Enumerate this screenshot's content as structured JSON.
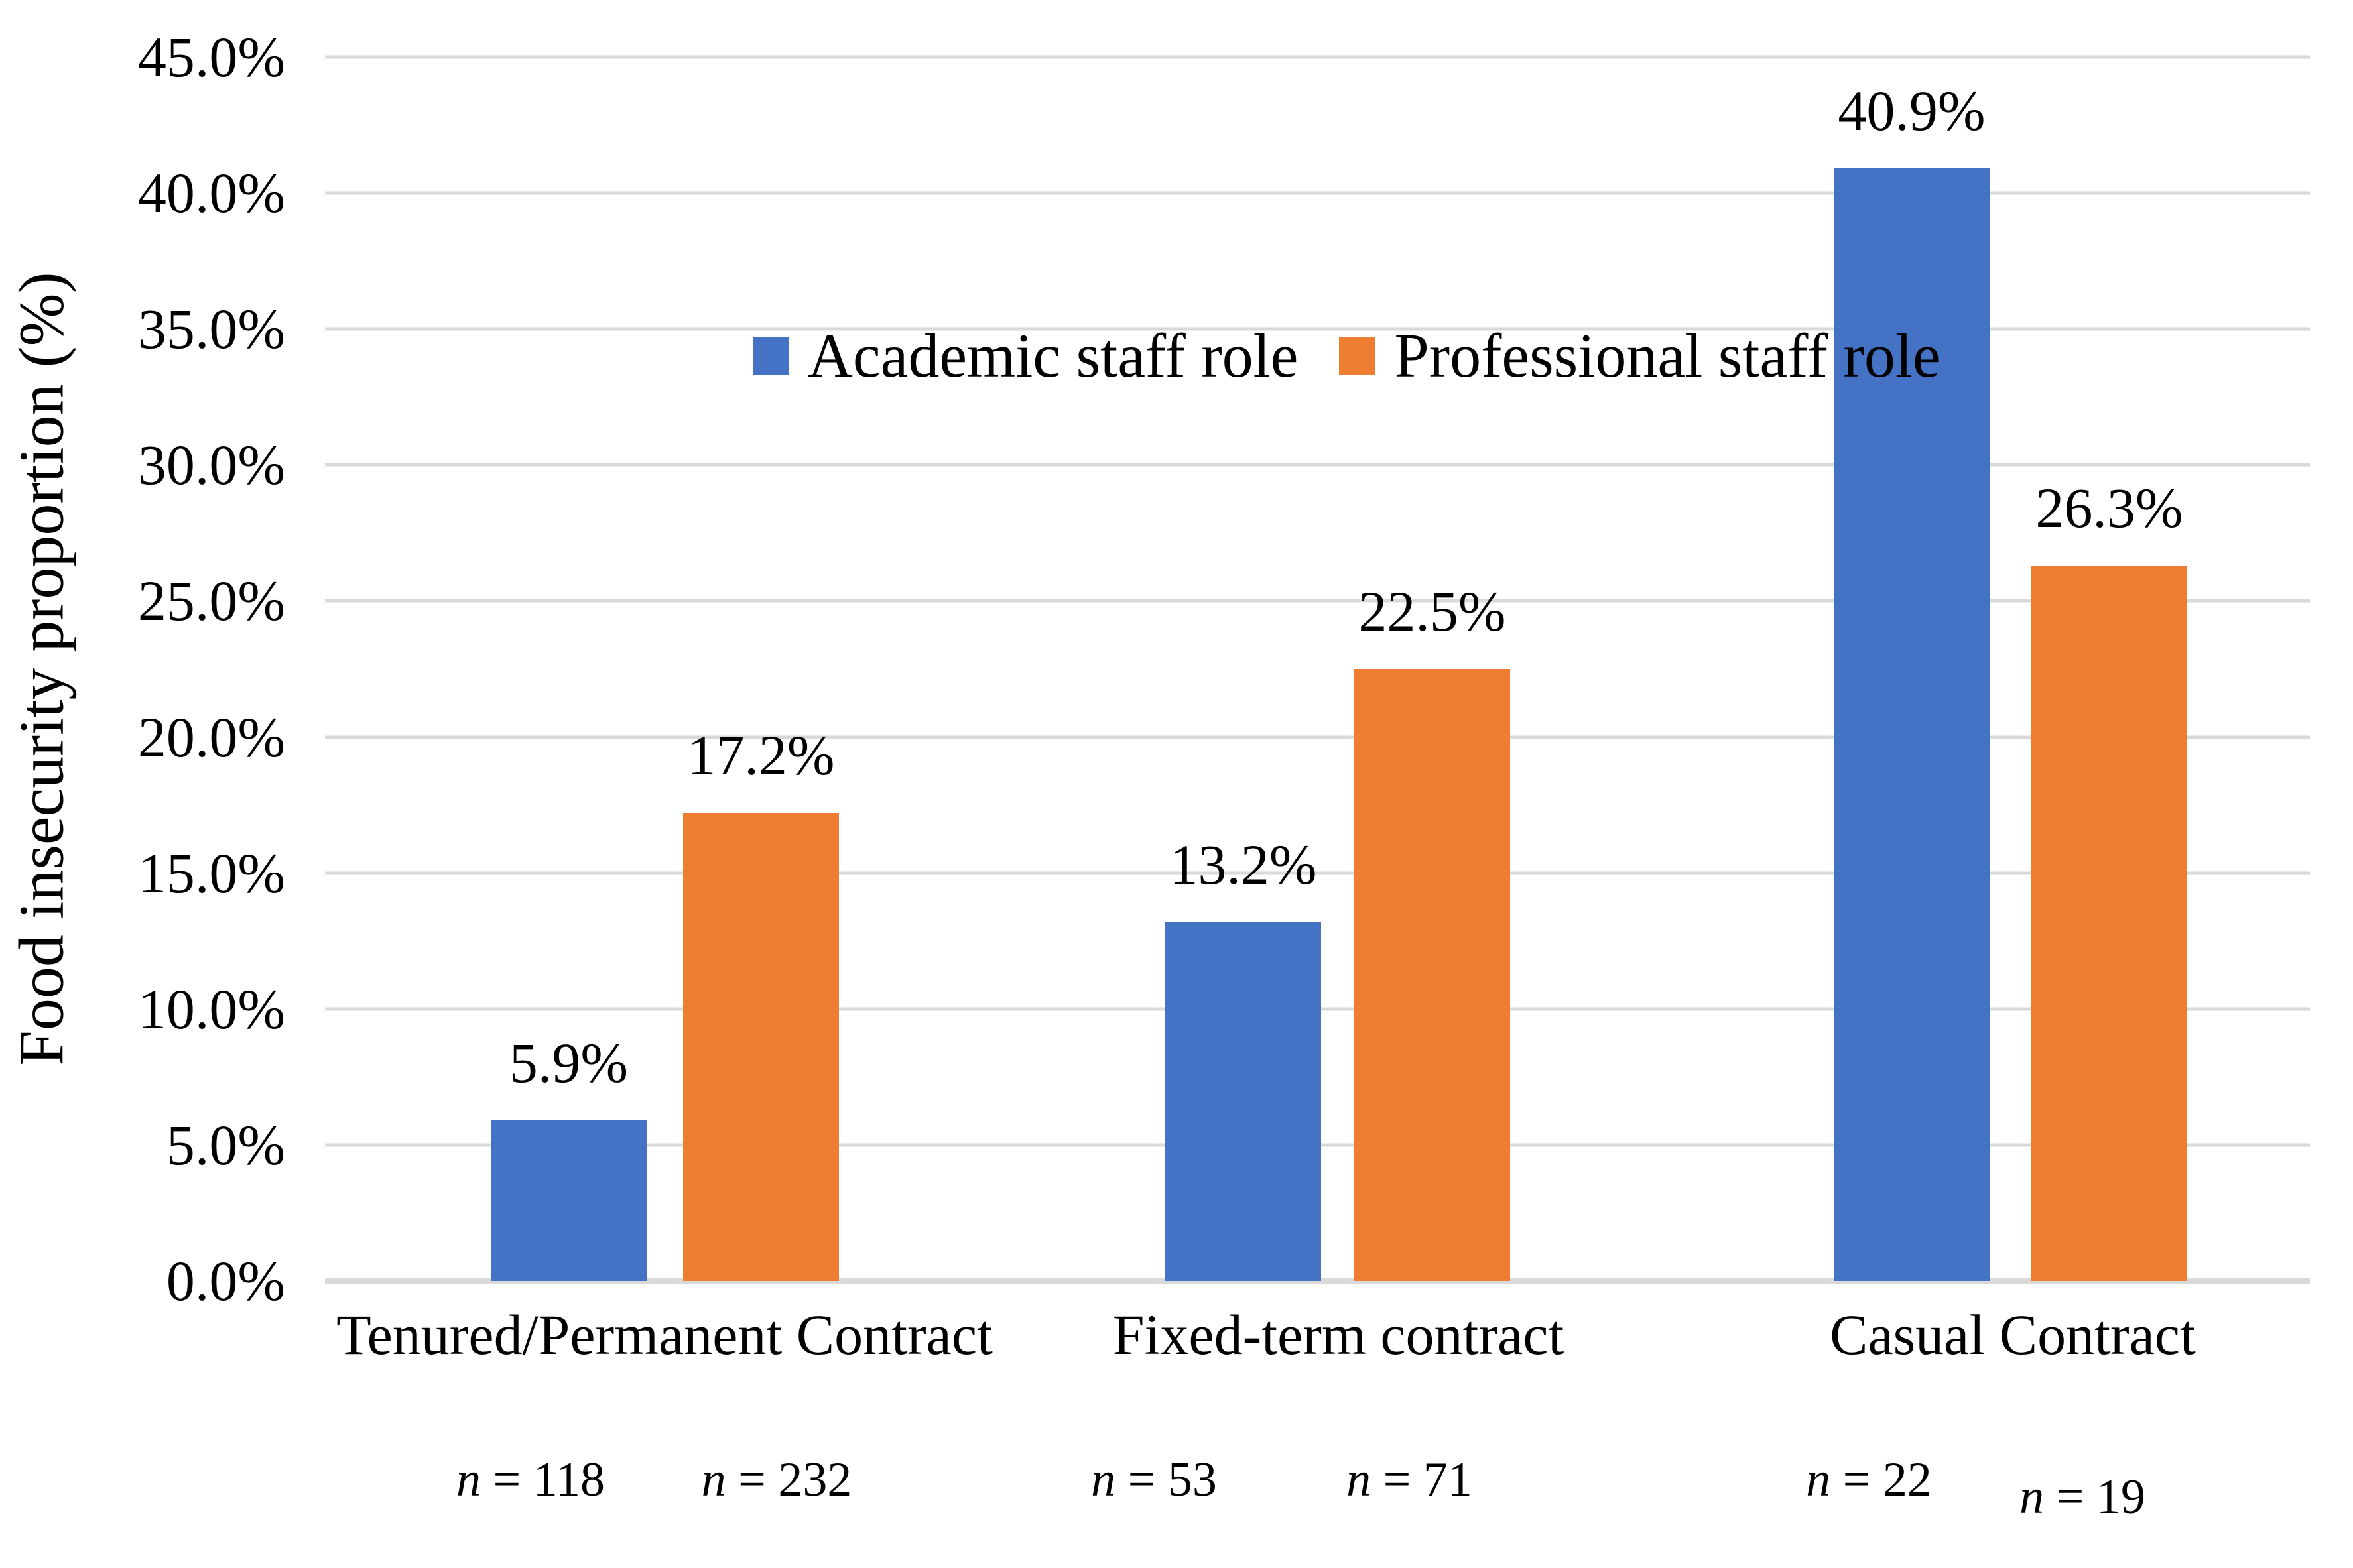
{
  "chart_data": {
    "type": "bar",
    "title": "",
    "ylabel": "Food insecurity proportion (%)",
    "xlabel": "",
    "ylim": [
      0,
      45
    ],
    "ytick_step": 5,
    "yticks": [
      "45.0%",
      "40.0%",
      "35.0%",
      "30.0%",
      "25.0%",
      "20.0%",
      "15.0%",
      "10.0%",
      "5.0%",
      "0.0%"
    ],
    "grid": true,
    "legend_position": "inside-top-left",
    "categories": [
      "Tenured/Permanent Contract",
      "Fixed-term contract",
      "Casual Contract"
    ],
    "series": [
      {
        "name": "Academic staff role",
        "color": "#4472C4",
        "values": [
          5.9,
          13.2,
          40.9
        ],
        "value_labels": [
          "5.9%",
          "13.2%",
          "40.9%"
        ],
        "sample_sizes": [
          118,
          53,
          22
        ]
      },
      {
        "name": "Professional staff role",
        "color": "#ED7D31",
        "values": [
          17.2,
          22.5,
          26.3
        ],
        "value_labels": [
          "17.2%",
          "22.5%",
          "26.3%"
        ],
        "sample_sizes": [
          232,
          71,
          19
        ]
      }
    ],
    "sample_labels": [
      "n = 118",
      "n = 232",
      "n = 53",
      "n = 71",
      "n = 22",
      "n = 19"
    ]
  },
  "colors": {
    "background": "#FFFFFF",
    "gridline": "#D9D9D9",
    "axis_line": "#D9D9D9",
    "text": "#000000"
  }
}
